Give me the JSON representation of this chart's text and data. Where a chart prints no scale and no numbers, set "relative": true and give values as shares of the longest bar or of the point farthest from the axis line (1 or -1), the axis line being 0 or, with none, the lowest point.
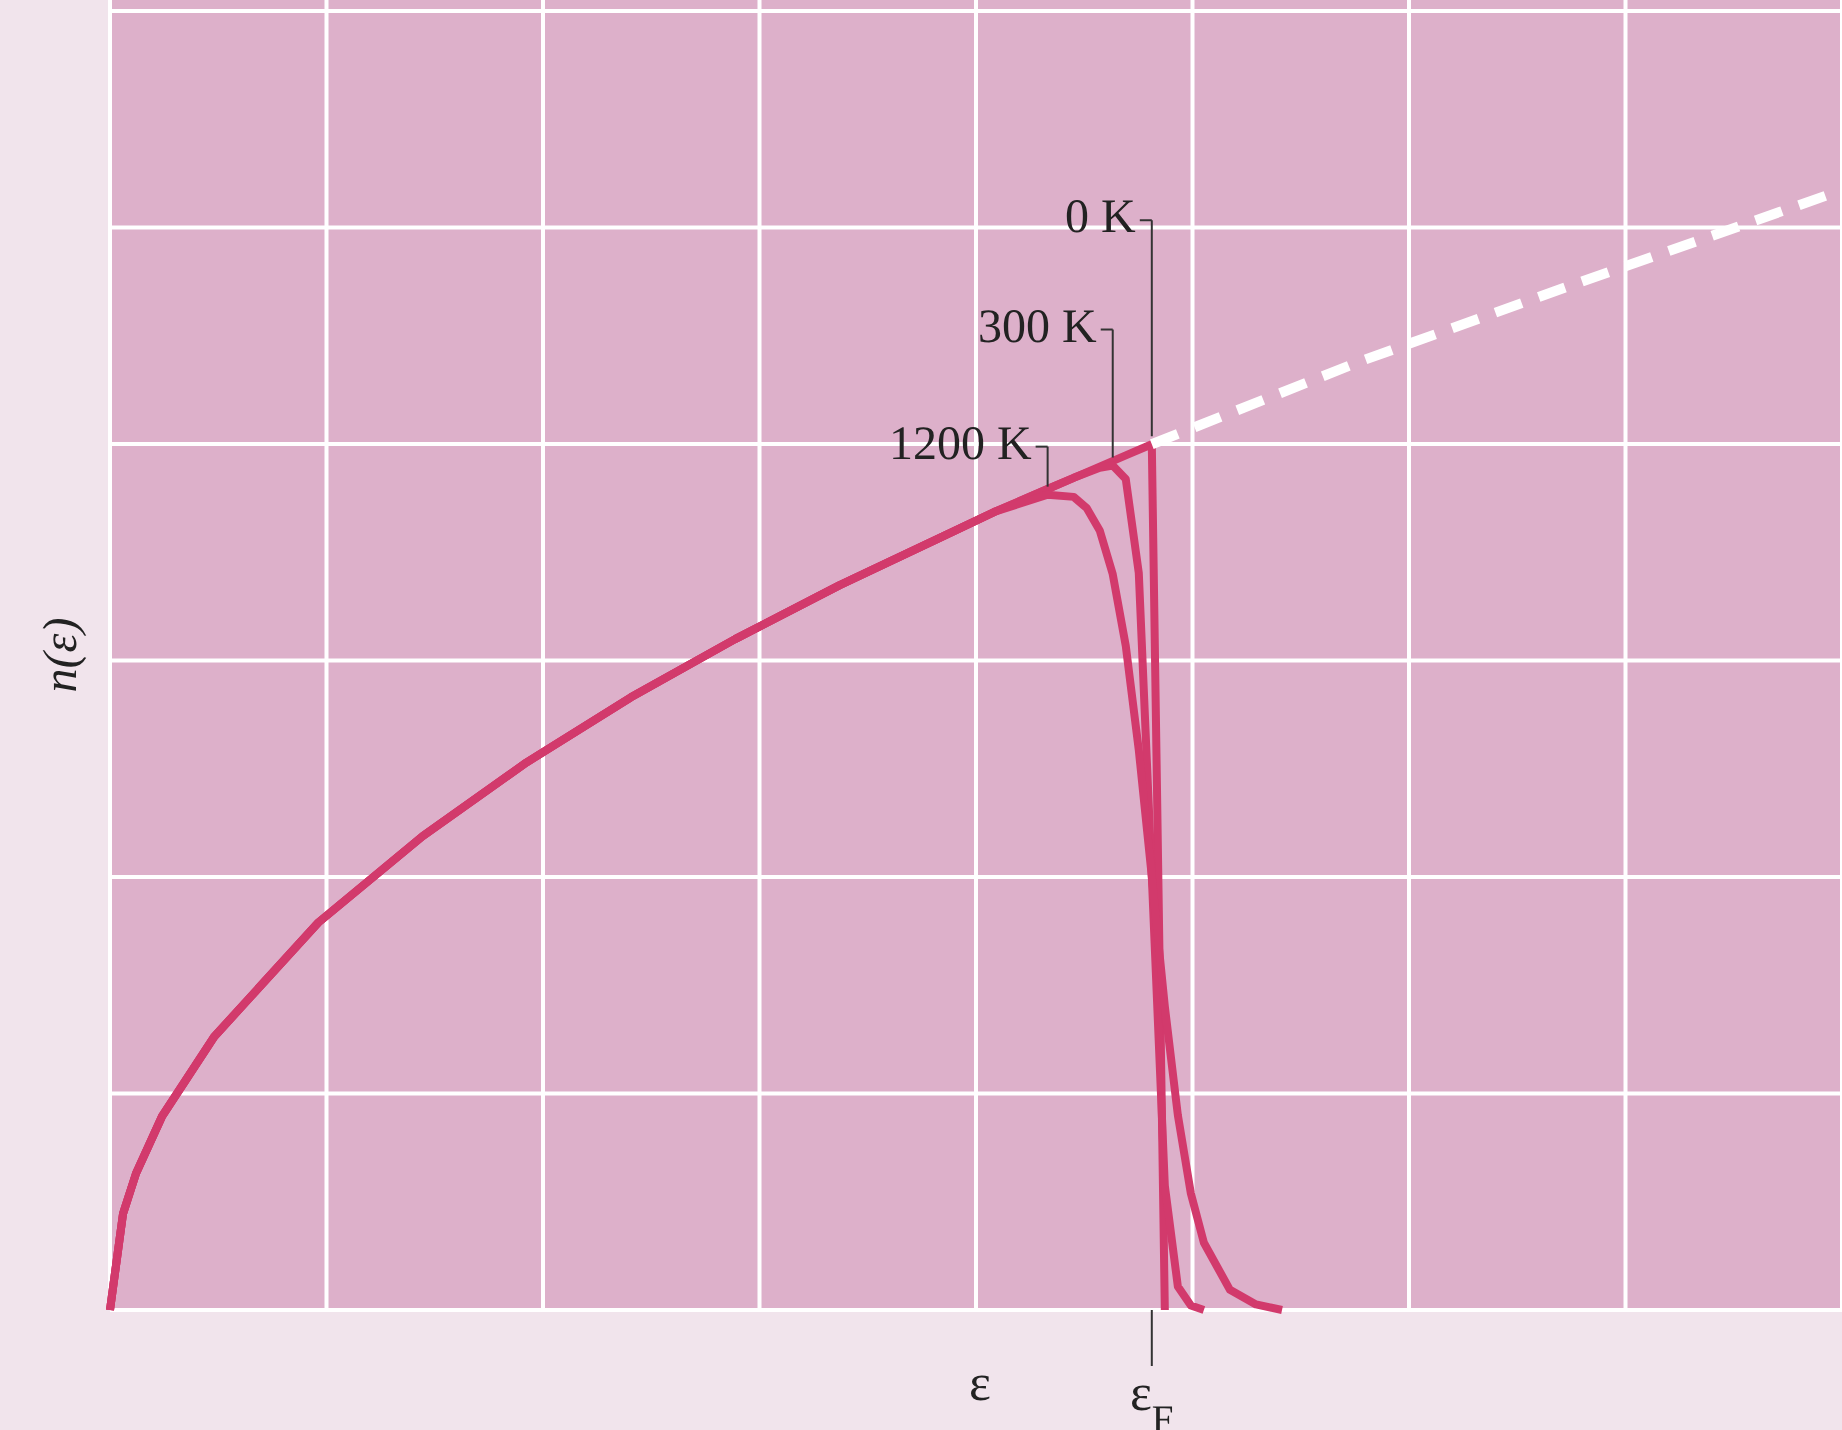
{
  "chart_data": {
    "type": "line",
    "relative": true,
    "xlabel": "ε",
    "ylabel": "n(ε)",
    "annotations": [
      "ε$_{F}$"
    ],
    "grid": true,
    "marker": "none",
    "categories": [
      null,
      null,
      null,
      null,
      null,
      null,
      null,
      null,
      null,
      null,
      null,
      null,
      null,
      null,
      null,
      null,
      null,
      null,
      null,
      null,
      null,
      null,
      null,
      null,
      null,
      null,
      null,
      null,
      null,
      null,
      null,
      null,
      null,
      null,
      null,
      null,
      null,
      null,
      null,
      null,
      null,
      null,
      null,
      null,
      null,
      null,
      null,
      null,
      null,
      null,
      null,
      null,
      null,
      null,
      null,
      null,
      null,
      null,
      null,
      null,
      null,
      null,
      null,
      null,
      null,
      null,
      null,
      null,
      null,
      null,
      null,
      null,
      null,
      null,
      null,
      null,
      null,
      null,
      null,
      null,
      null,
      null,
      null,
      null,
      null,
      null,
      null,
      null,
      null,
      null,
      null,
      null,
      null,
      null,
      null,
      null,
      null,
      null,
      null,
      null,
      null,
      null,
      null,
      null,
      null,
      null,
      null,
      null,
      null,
      null,
      null,
      null,
      null,
      null,
      null,
      null,
      null,
      null,
      null,
      null,
      null,
      null,
      null,
      null,
      null,
      null,
      null,
      null,
      null,
      null,
      null,
      null,
      null,
      null
    ],
    "series": [
      {
        "name": "0 K",
        "color": "#d23a6c",
        "line_style": "solid",
        "values": [
          0,
          0.086,
          0.122,
          null,
          0.173,
          null,
          null,
          null,
          0.244,
          null,
          null,
          null,
          null,
          null,
          null,
          null,
          0.346,
          null,
          null,
          null,
          null,
          null,
          null,
          null,
          0.423,
          null,
          null,
          null,
          null,
          null,
          null,
          null,
          0.489,
          null,
          null,
          null,
          null,
          null,
          null,
          null,
          0.547,
          null,
          null,
          null,
          null,
          null,
          null,
          null,
          0.599,
          null,
          null,
          null,
          null,
          null,
          null,
          null,
          0.647,
          null,
          null,
          null,
          null,
          null,
          null,
          null,
          0.691,
          null,
          null,
          null,
          0.713,
          null,
          null,
          null,
          0.733,
          null,
          0.743,
          null,
          0.753,
          null,
          0.763,
          null,
          0.773,
          0,
          null,
          null,
          null,
          null,
          null,
          null,
          null,
          null,
          null,
          null,
          null,
          null,
          null,
          null,
          null,
          null,
          null,
          null,
          null,
          null,
          null,
          null,
          null,
          null,
          null,
          null,
          null,
          null,
          null,
          null,
          null,
          null,
          null,
          null,
          null,
          null,
          null,
          null,
          null,
          null,
          null,
          null,
          null,
          null,
          null,
          null,
          null,
          null,
          null,
          null,
          null,
          null
        ]
      },
      {
        "name": "300 K",
        "color": "#d23a6c",
        "line_style": "solid",
        "values": [
          0,
          0.086,
          0.122,
          null,
          0.173,
          null,
          null,
          null,
          0.244,
          null,
          null,
          null,
          null,
          null,
          null,
          null,
          0.346,
          null,
          null,
          null,
          null,
          null,
          null,
          null,
          0.423,
          null,
          null,
          null,
          null,
          null,
          null,
          null,
          0.489,
          null,
          null,
          null,
          null,
          null,
          null,
          null,
          0.547,
          null,
          null,
          null,
          null,
          null,
          null,
          null,
          0.599,
          null,
          null,
          null,
          null,
          null,
          null,
          null,
          0.647,
          null,
          null,
          null,
          null,
          null,
          null,
          null,
          0.691,
          null,
          null,
          null,
          0.713,
          null,
          null,
          null,
          0.733,
          null,
          0.743,
          null,
          0.752,
          0.754,
          0.742,
          0.658,
          0.387,
          0.111,
          0.021,
          0.004,
          0,
          null,
          null,
          null,
          null,
          null,
          null,
          null,
          null,
          null,
          null,
          null,
          null,
          null,
          null,
          null,
          null,
          null,
          null,
          null,
          null,
          null,
          null,
          null,
          null,
          null,
          null,
          null,
          null,
          null,
          null,
          null,
          null,
          null,
          null,
          null,
          null,
          null,
          null,
          null,
          null,
          null,
          null,
          null,
          null,
          null,
          null,
          null,
          null,
          null
        ]
      },
      {
        "name": "1200 K",
        "color": "#d23a6c",
        "line_style": "solid",
        "values": [
          0,
          0.086,
          0.122,
          null,
          0.173,
          null,
          null,
          null,
          0.244,
          null,
          null,
          null,
          null,
          null,
          null,
          null,
          0.346,
          null,
          null,
          null,
          null,
          null,
          null,
          null,
          0.423,
          null,
          null,
          null,
          null,
          null,
          null,
          null,
          0.489,
          null,
          null,
          null,
          null,
          null,
          null,
          null,
          0.547,
          null,
          null,
          null,
          null,
          null,
          null,
          null,
          0.599,
          null,
          null,
          null,
          null,
          null,
          null,
          null,
          0.647,
          null,
          null,
          null,
          null,
          null,
          null,
          null,
          0.691,
          null,
          null,
          null,
          0.713,
          null,
          null,
          null,
          0.728,
          null,
          0.726,
          0.716,
          0.696,
          0.657,
          0.593,
          0.5,
          0.387,
          0.271,
          0.174,
          0.104,
          0.06,
          null,
          0.018,
          null,
          0.005,
          null,
          0,
          null,
          null,
          null,
          null,
          null,
          null,
          null,
          null,
          null,
          null,
          null,
          null,
          null,
          null,
          null,
          null,
          null,
          null,
          null,
          null,
          null,
          null,
          null,
          null,
          null,
          null,
          null,
          null,
          null,
          null,
          null,
          null,
          null,
          null,
          null,
          null,
          null,
          null,
          null,
          null,
          null,
          null,
          null
        ]
      },
      {
        "color": "#ffffff",
        "line_style": "dashed",
        "values": [
          null,
          null,
          null,
          null,
          null,
          null,
          null,
          null,
          null,
          null,
          null,
          null,
          null,
          null,
          null,
          null,
          null,
          null,
          null,
          null,
          null,
          null,
          null,
          null,
          null,
          null,
          null,
          null,
          null,
          null,
          null,
          null,
          null,
          null,
          null,
          null,
          null,
          null,
          null,
          null,
          null,
          null,
          null,
          null,
          null,
          null,
          null,
          null,
          null,
          null,
          null,
          null,
          null,
          null,
          null,
          null,
          null,
          null,
          null,
          null,
          null,
          null,
          null,
          null,
          null,
          null,
          null,
          null,
          null,
          null,
          null,
          null,
          null,
          null,
          null,
          null,
          null,
          null,
          null,
          null,
          0.773,
          null,
          null,
          null,
          null,
          null,
          null,
          null,
          null,
          null,
          null,
          null,
          null,
          null,
          null,
          null,
          0.847,
          null,
          null,
          null,
          null,
          null,
          null,
          null,
          null,
          null,
          null,
          null,
          null,
          null,
          null,
          null,
          0.914,
          null,
          null,
          null,
          null,
          null,
          null,
          null,
          null,
          null,
          null,
          null,
          null,
          null,
          null,
          null,
          null,
          null,
          null,
          null,
          null,
          1
        ]
      }
    ]
  }
}
